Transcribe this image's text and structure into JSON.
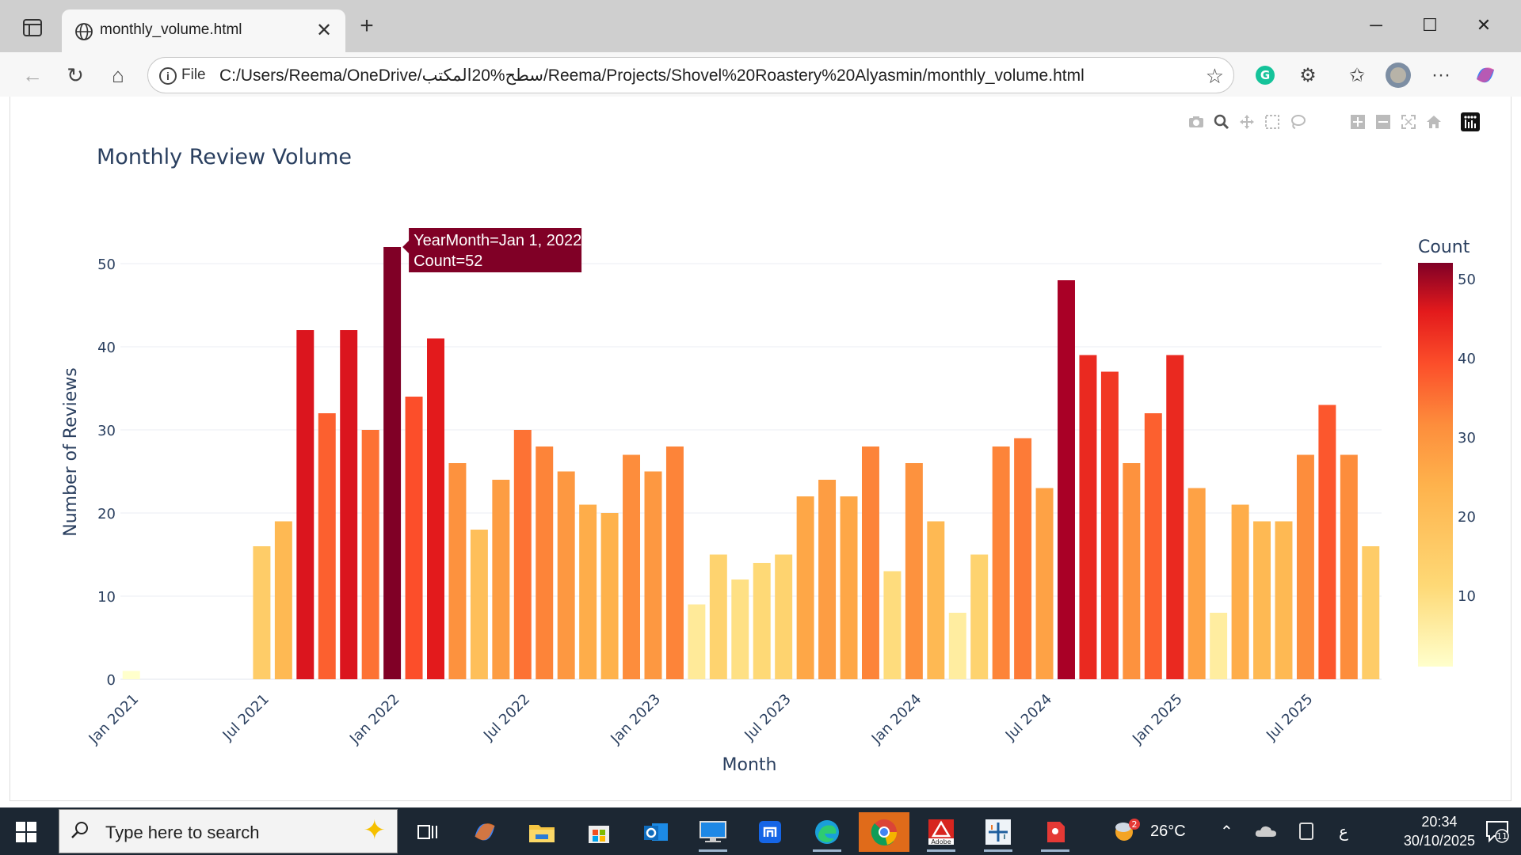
{
  "browser": {
    "tab_title": "monthly_volume.html",
    "address_prefix": "File",
    "url": "C:/Users/Reema/OneDrive/سطح%20المكتب/Reema/Projects/Shovel%20Roastery%20Alyasmin/monthly_volume.html"
  },
  "chart_data": {
    "type": "bar",
    "title": "Monthly Review Volume",
    "xlabel": "Month",
    "ylabel": "Number of Reviews",
    "ylim": [
      0,
      52
    ],
    "yticks": [
      0,
      10,
      20,
      30,
      40,
      50
    ],
    "colorbar": {
      "title": "Count",
      "ticks": [
        10,
        20,
        30,
        40,
        50
      ],
      "range": [
        1,
        52
      ]
    },
    "x_tick_labels": [
      "Jan 2021",
      "Jul 2021",
      "Jan 2022",
      "Jul 2022",
      "Jan 2023",
      "Jul 2023",
      "Jan 2024",
      "Jul 2024",
      "Jan 2025",
      "Jul 2025"
    ],
    "start_year": 2021,
    "start_month": 1,
    "values": [
      1,
      0,
      0,
      0,
      0,
      0,
      16,
      19,
      42,
      32,
      42,
      30,
      52,
      34,
      41,
      26,
      18,
      24,
      30,
      28,
      25,
      21,
      20,
      27,
      25,
      28,
      9,
      15,
      12,
      14,
      15,
      22,
      24,
      22,
      28,
      13,
      26,
      19,
      8,
      15,
      28,
      29,
      23,
      48,
      39,
      37,
      26,
      32,
      39,
      23,
      8,
      21,
      19,
      19,
      27,
      33,
      27,
      16
    ],
    "hover": {
      "line1": "YearMonth=Jan 1, 2022",
      "line2": "Count=52"
    },
    "grid": true,
    "legend": "colorbar-right",
    "colorscale": [
      "#ffffcc",
      "#ffeda0",
      "#fed976",
      "#feb24c",
      "#fd8d3c",
      "#fc4e2a",
      "#e31a1c",
      "#bd0026",
      "#800026"
    ]
  },
  "taskbar": {
    "search_placeholder": "Type here to search",
    "weather": "26°C",
    "weather_badge": "2",
    "lang": "ع",
    "time": "20:34",
    "date": "30/10/2025",
    "notifications": "11"
  }
}
